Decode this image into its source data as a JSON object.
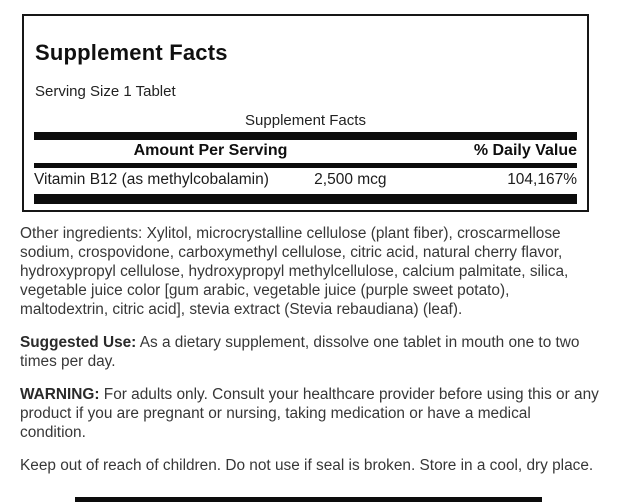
{
  "facts_panel": {
    "title": "Supplement Facts",
    "serving_size": "Serving Size 1 Tablet",
    "table_caption": "Supplement Facts",
    "columns": {
      "amount_header": "Amount Per Serving",
      "daily_value_header": "% Daily Value"
    },
    "rows": [
      {
        "name": "Vitamin B12 (as methylcobalamin)",
        "amount": "2,500 mcg",
        "daily_value": "104,167%"
      }
    ]
  },
  "sections": {
    "other_ingredients": {
      "text": "Other ingredients: Xylitol, microcrystalline cellulose (plant fiber), croscarmellose sodium, crospovidone, carboxymethyl cellulose, citric acid, natural cherry flavor, hydroxypropyl cellulose, hydroxypropyl methylcellulose, calcium palmitate, silica, vegetable juice color [gum arabic, vegetable juice (purple sweet potato), maltodextrin, citric acid], stevia extract (Stevia rebaudiana) (leaf)."
    },
    "suggested_use": {
      "lead": "Suggested Use:",
      "text": " As a dietary supplement, dissolve one tablet in mouth one to two times per day."
    },
    "warning": {
      "lead": "WARNING:",
      "text": " For adults only. Consult your healthcare provider before using this or any product if you are pregnant or nursing, taking medication or have a medical condition."
    },
    "storage": {
      "text": "Keep out of reach of children. Do not use if seal is broken. Store in a cool, dry place."
    }
  },
  "colors": {
    "divider_bar": "#0c0c0c",
    "panel_border": "#161616",
    "body_text": "#373737",
    "table_text": "#1c1c1c"
  }
}
